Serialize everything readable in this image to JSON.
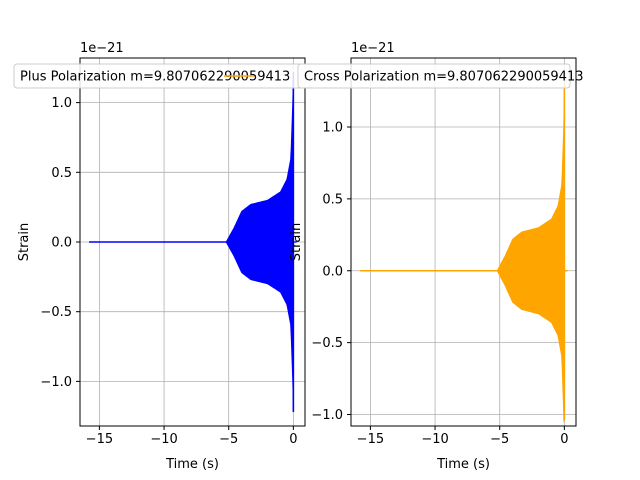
{
  "chart_data": [
    {
      "type": "line",
      "title": "",
      "xlabel": "Time (s)",
      "ylabel": "Strain",
      "offset_text": "1e−21",
      "xlim": [
        -16.5,
        0.9
      ],
      "ylim": [
        -1.32,
        1.32
      ],
      "x_ticks": [
        -15,
        -10,
        -5,
        0
      ],
      "x_tick_labels": [
        "−15",
        "−10",
        "−5",
        "0"
      ],
      "y_ticks": [
        -1.0,
        -0.5,
        0.0,
        0.5,
        1.0
      ],
      "y_tick_labels": [
        "−1.0",
        "−0.5",
        "0.0",
        "0.5",
        "1.0"
      ],
      "grid": true,
      "legend_position": "upper-center",
      "series": [
        {
          "name": "Plus Polarization m=9.807062290059413",
          "color": "#0000ff",
          "x_start": -15.8,
          "x_end": 0.0,
          "envelope": [
            [
              -5.2,
              0.0
            ],
            [
              -4.6,
              0.1
            ],
            [
              -4.0,
              0.22
            ],
            [
              -3.3,
              0.27
            ],
            [
              -2.0,
              0.3
            ],
            [
              -1.0,
              0.36
            ],
            [
              -0.5,
              0.45
            ],
            [
              -0.2,
              0.6
            ],
            [
              -0.05,
              1.0
            ],
            [
              0.0,
              1.22
            ]
          ],
          "min_value": -1.22,
          "max_value": 1.22
        }
      ]
    },
    {
      "type": "line",
      "title": "",
      "xlabel": "Time (s)",
      "ylabel": "Strain",
      "offset_text": "1e−21",
      "xlim": [
        -16.5,
        0.9
      ],
      "ylim": [
        -1.08,
        1.48
      ],
      "x_ticks": [
        -15,
        -10,
        -5,
        0
      ],
      "x_tick_labels": [
        "−15",
        "−10",
        "−5",
        "0"
      ],
      "y_ticks": [
        -1.0,
        -0.5,
        0.0,
        0.5,
        1.0
      ],
      "y_tick_labels": [
        "−1.0",
        "−0.5",
        "0.0",
        "0.5",
        "1.0"
      ],
      "grid": true,
      "legend_position": "upper-center",
      "series": [
        {
          "name": "Cross Polarization m=9.807062290059413",
          "color": "#ffa500",
          "x_start": -15.8,
          "x_end": 0.0,
          "envelope": [
            [
              -5.2,
              0.0
            ],
            [
              -4.6,
              0.1
            ],
            [
              -4.0,
              0.22
            ],
            [
              -3.3,
              0.27
            ],
            [
              -2.0,
              0.3
            ],
            [
              -1.0,
              0.36
            ],
            [
              -0.5,
              0.45
            ],
            [
              -0.2,
              0.6
            ],
            [
              -0.05,
              1.0
            ],
            [
              0.0,
              1.38
            ]
          ],
          "min_value": -1.04,
          "max_value": 1.38
        }
      ]
    }
  ]
}
